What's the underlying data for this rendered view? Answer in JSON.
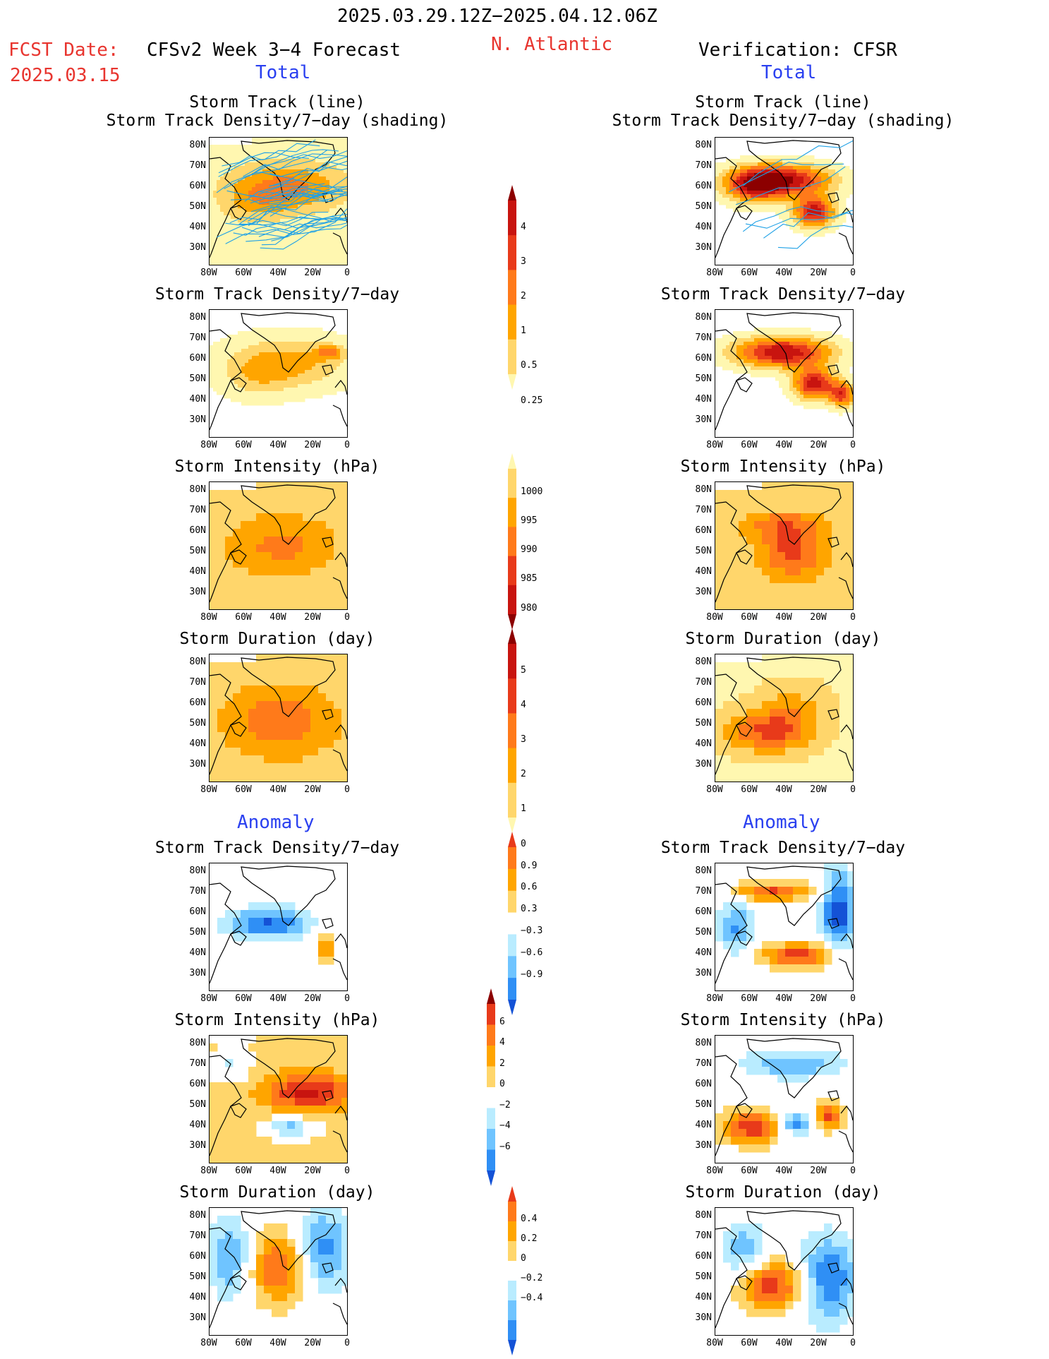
{
  "header": {
    "date_range": "2025.03.29.12Z−2025.04.12.06Z",
    "fcst_label": "FCST Date:",
    "fcst_date": "2025.03.15",
    "model_title": "CFSv2 Week 3−4 Forecast",
    "region": "N. Atlantic",
    "verification": "Verification: CFSR"
  },
  "sections": {
    "total": "Total",
    "anomaly": "Anomaly"
  },
  "panel_titles": {
    "track_line": "Storm Track (line)",
    "track_shading": "Storm Track Density/7−day (shading)",
    "density": "Storm Track Density/7−day",
    "intensity": "Storm Intensity (hPa)",
    "duration": "Storm Duration (day)"
  },
  "axes": {
    "y_ticks": [
      "80N",
      "70N",
      "60N",
      "50N",
      "40N",
      "30N"
    ],
    "x_ticks": [
      "80W",
      "60W",
      "40W",
      "20W",
      "0"
    ]
  },
  "colorbars": {
    "density": [
      "4",
      "3",
      "2",
      "1",
      "0.5",
      "0.25"
    ],
    "intensity": [
      "1000",
      "995",
      "990",
      "985",
      "980"
    ],
    "duration": [
      "5",
      "4",
      "3",
      "2",
      "1",
      "0"
    ],
    "density_anom": [
      "0.9",
      "0.6",
      "0.3",
      "−0.3",
      "−0.6",
      "−0.9"
    ],
    "intensity_anom": [
      "6",
      "4",
      "2",
      "0",
      "−2",
      "−4",
      "−6"
    ],
    "duration_anom": [
      "0.4",
      "0.2",
      "0",
      "−0.2",
      "−0.4"
    ]
  },
  "colors": {
    "warm": [
      "#fff7b0",
      "#ffd66b",
      "#ffa500",
      "#ff7a1a",
      "#e83a1a",
      "#c8140f",
      "#8c0000"
    ],
    "cool": [
      "#ffffff",
      "#b9ecff",
      "#6fc4ff",
      "#2f8ff5",
      "#1452d6"
    ],
    "track_line": "#1fa1e6"
  }
}
